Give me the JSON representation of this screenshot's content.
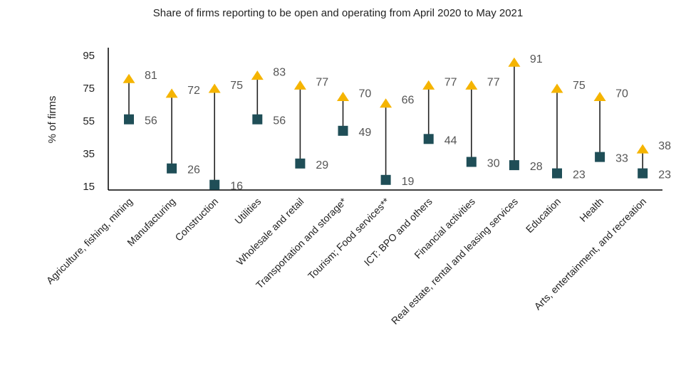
{
  "chart_data": {
    "type": "dumbbell",
    "title": "Share of firms reporting to be open and operating from April 2020 to May 2021",
    "ylabel": "% of firms",
    "xlabel": "",
    "ylim": [
      15,
      95
    ],
    "yticks": [
      15,
      35,
      55,
      75,
      95
    ],
    "grid": false,
    "categories": [
      "Agriculture, fishing, mining",
      "Manufacturing",
      "Construction",
      "Utilities",
      "Wholesale and retail",
      "Transportation and storage*",
      "Tourism; Food services**",
      "ICT: BPO and others",
      "Financial activities",
      "Real estate, rental and leasing services",
      "Education",
      "Health",
      "Arts, entertainment, and recreation"
    ],
    "series": [
      {
        "marker": "square",
        "color": "#1f4e57",
        "values": [
          56,
          26,
          16,
          56,
          29,
          49,
          19,
          44,
          30,
          28,
          23,
          33,
          23
        ]
      },
      {
        "marker": "triangle",
        "color": "#f5b400",
        "values": [
          81,
          72,
          75,
          83,
          77,
          70,
          66,
          77,
          77,
          91,
          75,
          70,
          38
        ]
      }
    ]
  }
}
